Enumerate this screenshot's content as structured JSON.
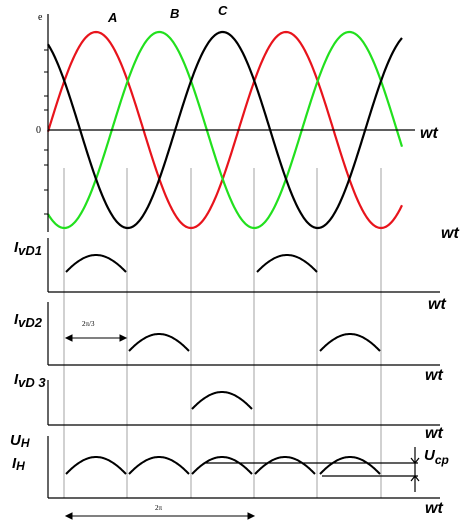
{
  "labels": {
    "e_axis": "e",
    "zero": "0",
    "phase_a": "A",
    "phase_b": "B",
    "phase_c": "C",
    "wt": "wt",
    "ivd1": "IvD1",
    "ivd2": "IvD2",
    "ivd3": "IvD 3",
    "un": "UH",
    "in": "IH",
    "ucp": "Ucp",
    "two_pi_over_3": "2π/3",
    "two_pi": "2π"
  },
  "colors": {
    "phase_a": "#e8141c",
    "phase_b": "#22e01e",
    "phase_c": "#000000",
    "axis": "#000000",
    "grid": "#8c8c8c"
  }
}
